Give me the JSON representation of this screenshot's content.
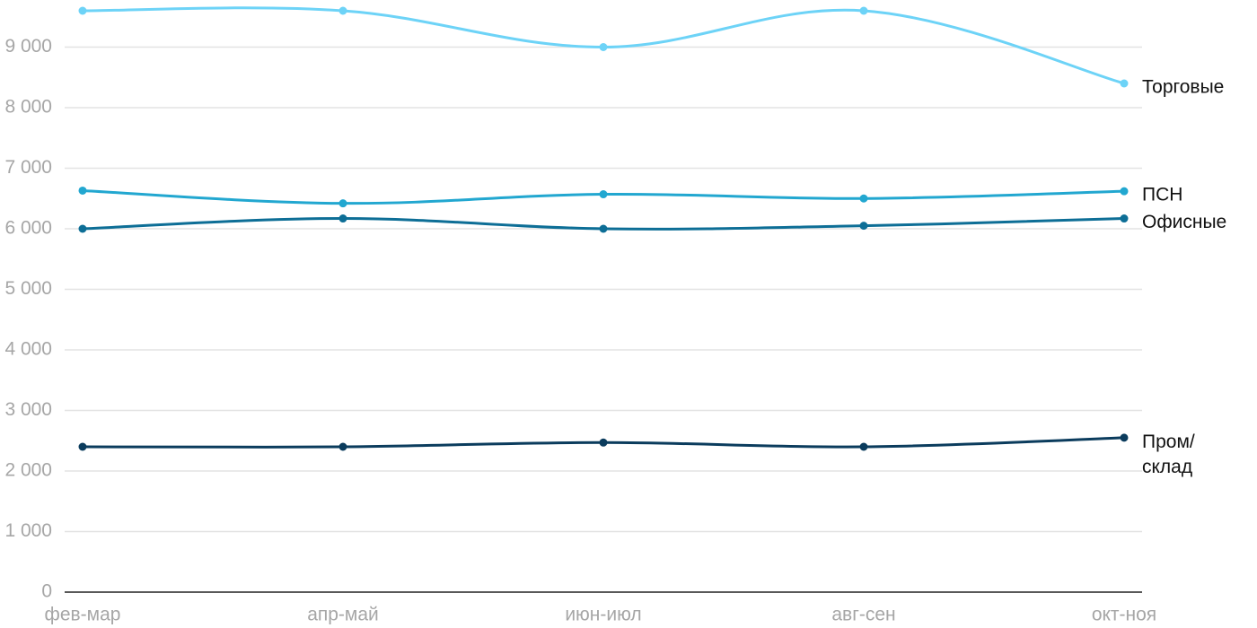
{
  "chart_data": {
    "type": "line",
    "categories": [
      "фев-мар",
      "апр-май",
      "июн-июл",
      "авг-сен",
      "окт-ноя"
    ],
    "series": [
      {
        "name": "Торговые",
        "color": "#6dd3f7",
        "values": [
          9600,
          9600,
          9000,
          9600,
          8400
        ]
      },
      {
        "name": "ПСН",
        "color": "#22a7d0",
        "values": [
          6630,
          6420,
          6570,
          6500,
          6620
        ]
      },
      {
        "name": "Офисные",
        "color": "#0d6e96",
        "values": [
          6000,
          6170,
          6000,
          6050,
          6170
        ]
      },
      {
        "name": "Пром/склад",
        "color": "#0b3c5d",
        "values": [
          2400,
          2400,
          2470,
          2400,
          2550
        ]
      }
    ],
    "ylim": [
      0,
      9600
    ],
    "yticks": [
      0,
      {
        "value": 1000,
        "label": "1 000"
      },
      {
        "value": 2000,
        "label": "2 000"
      },
      {
        "value": 3000,
        "label": "3 000"
      },
      {
        "value": 4000,
        "label": "4 000"
      },
      {
        "value": 5000,
        "label": "5 000"
      },
      {
        "value": 6000,
        "label": "6 000"
      },
      {
        "value": 7000,
        "label": "7 000"
      },
      {
        "value": 8000,
        "label": "8 000"
      },
      {
        "value": 9000,
        "label": "9 000"
      }
    ],
    "grid": true
  }
}
